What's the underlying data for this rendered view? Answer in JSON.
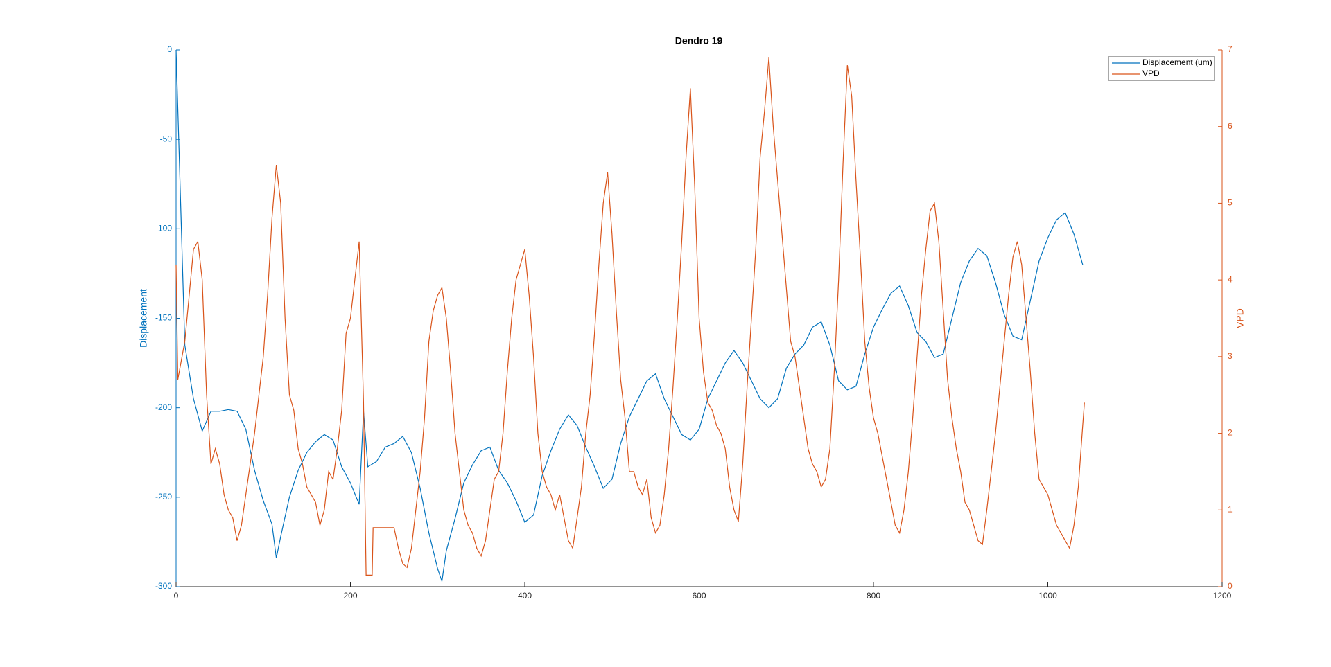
{
  "chart_data": {
    "type": "line",
    "title": "Dendro 19",
    "ylabel": "Displacement",
    "y2label": "VPD",
    "xlim": [
      0,
      1200
    ],
    "xticks": [
      0,
      200,
      400,
      600,
      800,
      1000,
      1200
    ],
    "ylim": [
      -300,
      0
    ],
    "yticks": [
      -300,
      -250,
      -200,
      -150,
      -100,
      -50,
      0
    ],
    "y2lim": [
      0,
      7
    ],
    "y2ticks": [
      0,
      1,
      2,
      3,
      4,
      5,
      6,
      7
    ],
    "y_color": "#0072bd",
    "y2_color": "#d95319",
    "legend": "upper right",
    "series": [
      {
        "name": "Displacement (um)",
        "color": "#0072bd",
        "axis": "y",
        "x": [
          0,
          10,
          20,
          30,
          40,
          50,
          60,
          70,
          80,
          90,
          100,
          110,
          115,
          120,
          130,
          140,
          150,
          160,
          170,
          180,
          190,
          200,
          210,
          215,
          220,
          230,
          240,
          250,
          260,
          270,
          280,
          290,
          300,
          305,
          310,
          320,
          330,
          340,
          350,
          360,
          370,
          380,
          390,
          400,
          410,
          420,
          430,
          440,
          450,
          460,
          470,
          480,
          490,
          500,
          510,
          520,
          530,
          540,
          550,
          560,
          570,
          580,
          590,
          600,
          610,
          620,
          630,
          640,
          650,
          660,
          670,
          680,
          690,
          700,
          710,
          720,
          730,
          740,
          750,
          760,
          770,
          780,
          790,
          800,
          810,
          820,
          830,
          840,
          850,
          860,
          870,
          880,
          890,
          900,
          910,
          920,
          930,
          940,
          950,
          960,
          970,
          980,
          990,
          1000,
          1010,
          1020,
          1030,
          1040
        ],
        "values": [
          0,
          -165,
          -195,
          -213,
          -202,
          -202,
          -201,
          -202,
          -212,
          -235,
          -252,
          -265,
          -284,
          -272,
          -250,
          -235,
          -225,
          -219,
          -215,
          -218,
          -233,
          -242,
          -254,
          -202,
          -233,
          -230,
          -222,
          -220,
          -216,
          -225,
          -245,
          -270,
          -290,
          -297,
          -280,
          -262,
          -242,
          -232,
          -224,
          -222,
          -235,
          -242,
          -252,
          -264,
          -260,
          -238,
          -224,
          -212,
          -204,
          -210,
          -222,
          -233,
          -245,
          -240,
          -220,
          -205,
          -195,
          -185,
          -181,
          -195,
          -205,
          -215,
          -218,
          -212,
          -195,
          -185,
          -175,
          -168,
          -175,
          -185,
          -195,
          -200,
          -195,
          -178,
          -170,
          -165,
          -155,
          -152,
          -165,
          -185,
          -190,
          -188,
          -170,
          -155,
          -145,
          -136,
          -132,
          -143,
          -158,
          -163,
          -172,
          -170,
          -150,
          -130,
          -118,
          -111,
          -115,
          -130,
          -148,
          -160,
          -162,
          -140,
          -118,
          -105,
          -95,
          -91,
          -103,
          -120
        ]
      },
      {
        "name": "VPD",
        "color": "#d95319",
        "axis": "y2",
        "x": [
          0,
          2,
          10,
          15,
          20,
          25,
          30,
          35,
          40,
          45,
          50,
          55,
          60,
          65,
          70,
          75,
          80,
          90,
          95,
          100,
          105,
          110,
          115,
          120,
          125,
          130,
          135,
          140,
          145,
          150,
          155,
          160,
          165,
          170,
          175,
          180,
          185,
          190,
          195,
          200,
          205,
          210,
          215,
          218,
          225,
          226,
          250,
          255,
          260,
          265,
          270,
          275,
          280,
          285,
          290,
          295,
          300,
          305,
          310,
          315,
          320,
          325,
          330,
          335,
          340,
          345,
          350,
          355,
          360,
          365,
          370,
          375,
          380,
          385,
          390,
          395,
          400,
          405,
          410,
          415,
          420,
          425,
          430,
          435,
          440,
          445,
          450,
          455,
          460,
          465,
          470,
          475,
          480,
          485,
          490,
          495,
          500,
          505,
          510,
          515,
          520,
          525,
          530,
          535,
          540,
          545,
          550,
          555,
          560,
          565,
          570,
          575,
          580,
          585,
          590,
          595,
          600,
          605,
          610,
          615,
          620,
          625,
          630,
          635,
          640,
          645,
          650,
          655,
          660,
          665,
          670,
          675,
          680,
          685,
          690,
          695,
          700,
          705,
          710,
          715,
          720,
          725,
          730,
          735,
          740,
          745,
          750,
          755,
          760,
          765,
          770,
          775,
          780,
          785,
          790,
          795,
          800,
          805,
          810,
          815,
          820,
          825,
          830,
          835,
          840,
          845,
          850,
          855,
          860,
          865,
          870,
          875,
          880,
          885,
          890,
          895,
          900,
          905,
          910,
          915,
          920,
          925,
          930,
          935,
          940,
          945,
          950,
          955,
          960,
          965,
          970,
          975,
          980,
          985,
          990,
          995,
          1000,
          1005,
          1010,
          1015,
          1020,
          1025,
          1030,
          1035,
          1040,
          1042
        ],
        "values": [
          4.2,
          2.7,
          3.2,
          3.8,
          4.4,
          4.5,
          4.0,
          2.5,
          1.6,
          1.8,
          1.6,
          1.2,
          1.0,
          0.9,
          0.6,
          0.8,
          1.2,
          2.0,
          2.5,
          3.0,
          3.8,
          4.8,
          5.5,
          5.0,
          3.5,
          2.5,
          2.3,
          1.8,
          1.6,
          1.3,
          1.2,
          1.1,
          0.8,
          1.0,
          1.5,
          1.4,
          1.8,
          2.3,
          3.3,
          3.5,
          4.0,
          4.5,
          2.4,
          0.15,
          0.15,
          0.77,
          0.77,
          0.5,
          0.3,
          0.25,
          0.5,
          1.0,
          1.5,
          2.2,
          3.2,
          3.6,
          3.8,
          3.9,
          3.5,
          2.8,
          2.0,
          1.5,
          1.0,
          0.8,
          0.7,
          0.5,
          0.4,
          0.6,
          1.0,
          1.4,
          1.5,
          2.0,
          2.8,
          3.5,
          4.0,
          4.2,
          4.4,
          3.8,
          3.0,
          2.0,
          1.5,
          1.3,
          1.2,
          1.0,
          1.2,
          0.9,
          0.6,
          0.5,
          0.9,
          1.3,
          2.0,
          2.5,
          3.3,
          4.2,
          5.0,
          5.4,
          4.6,
          3.6,
          2.7,
          2.2,
          1.5,
          1.5,
          1.3,
          1.2,
          1.4,
          0.9,
          0.7,
          0.8,
          1.2,
          1.8,
          2.6,
          3.5,
          4.5,
          5.6,
          6.5,
          5.2,
          3.5,
          2.8,
          2.4,
          2.3,
          2.1,
          2.0,
          1.8,
          1.3,
          1.0,
          0.85,
          1.6,
          2.6,
          3.5,
          4.4,
          5.6,
          6.2,
          6.9,
          6.0,
          5.3,
          4.6,
          3.9,
          3.2,
          3.0,
          2.6,
          2.2,
          1.8,
          1.6,
          1.5,
          1.3,
          1.4,
          1.8,
          2.8,
          4.0,
          5.5,
          6.8,
          6.4,
          5.3,
          4.3,
          3.2,
          2.6,
          2.2,
          2.0,
          1.7,
          1.4,
          1.1,
          0.8,
          0.7,
          1.0,
          1.5,
          2.2,
          3.0,
          3.8,
          4.4,
          4.9,
          5.0,
          4.5,
          3.6,
          2.7,
          2.2,
          1.8,
          1.5,
          1.1,
          1.0,
          0.8,
          0.6,
          0.55,
          1.0,
          1.5,
          2.0,
          2.6,
          3.2,
          3.8,
          4.3,
          4.5,
          4.2,
          3.5,
          2.8,
          2.0,
          1.4,
          1.3,
          1.2,
          1.0,
          0.8,
          0.7,
          0.6,
          0.5,
          0.8,
          1.3,
          2.1,
          2.4
        ]
      }
    ]
  }
}
